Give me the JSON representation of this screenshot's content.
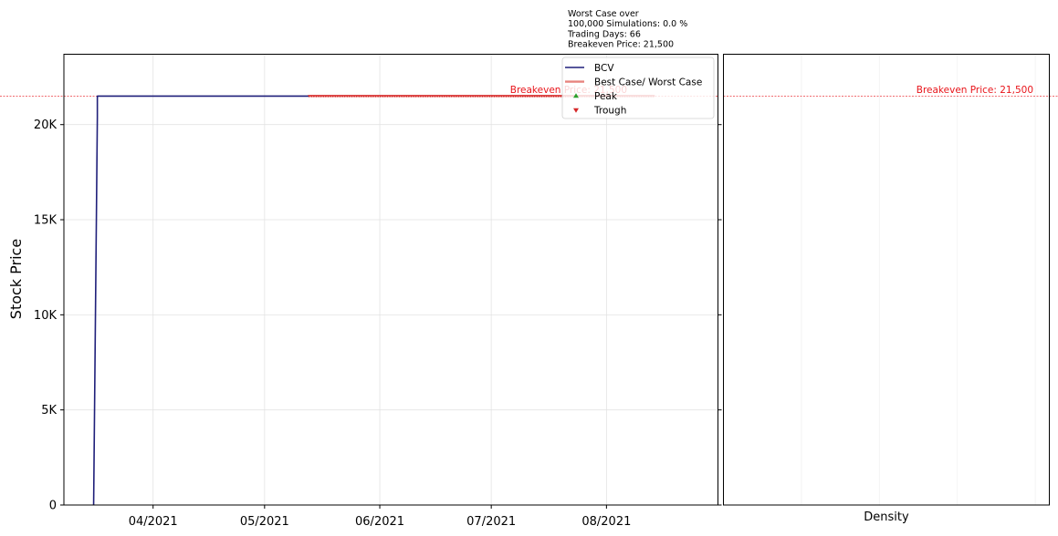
{
  "chart_data": {
    "type": "line",
    "ylabel": "Stock Price",
    "xlabel_density": "Density",
    "ylim": [
      0,
      23700
    ],
    "x_range": [
      "2021-03-08",
      "2021-08-31"
    ],
    "y_ticks": [
      {
        "value": 0,
        "label": "0"
      },
      {
        "value": 5000,
        "label": "5K"
      },
      {
        "value": 10000,
        "label": "10K"
      },
      {
        "value": 15000,
        "label": "15K"
      },
      {
        "value": 20000,
        "label": "20K"
      }
    ],
    "x_ticks": [
      {
        "date": "2021-04-01",
        "label": "04/2021"
      },
      {
        "date": "2021-05-01",
        "label": "05/2021"
      },
      {
        "date": "2021-06-01",
        "label": "06/2021"
      },
      {
        "date": "2021-07-01",
        "label": "07/2021"
      },
      {
        "date": "2021-08-01",
        "label": "08/2021"
      }
    ],
    "series": [
      {
        "name": "BCV",
        "color": "#1f1f7a",
        "points": [
          {
            "date": "2021-03-16",
            "value": 0
          },
          {
            "date": "2021-03-17",
            "value": 20400
          },
          {
            "date": "2021-03-17",
            "value": 21500
          },
          {
            "date": "2021-05-13",
            "value": 21500
          }
        ]
      },
      {
        "name": "Best Case/ Worst Case",
        "color": "#e8837e",
        "points": [
          {
            "date": "2021-05-13",
            "value": 21500
          },
          {
            "date": "2021-08-14",
            "value": 21500
          }
        ]
      }
    ],
    "trough_markers": {
      "color": "#d62728",
      "start": "2021-05-13",
      "end": "2021-08-14",
      "value": 21500
    },
    "reference_line": {
      "value": 21500,
      "label": "Breakeven Price: 21,500",
      "color": "#e8141a"
    },
    "legend": {
      "position": "upper-right",
      "items": [
        {
          "label": "BCV",
          "kind": "line",
          "color": "#1f1f7a"
        },
        {
          "label": "Best Case/ Worst Case",
          "kind": "line",
          "color": "#e8837e"
        },
        {
          "label": "Peak",
          "kind": "triangle-up",
          "color": "#2ca02c"
        },
        {
          "label": "Trough",
          "kind": "triangle-down",
          "color": "#d62728"
        }
      ]
    },
    "stats_lines": [
      "Worst Case over",
      "100,000 Simulations: 0.0 %",
      "Trading Days: 66",
      "Breakeven Price: 21,500"
    ],
    "grid": true
  }
}
